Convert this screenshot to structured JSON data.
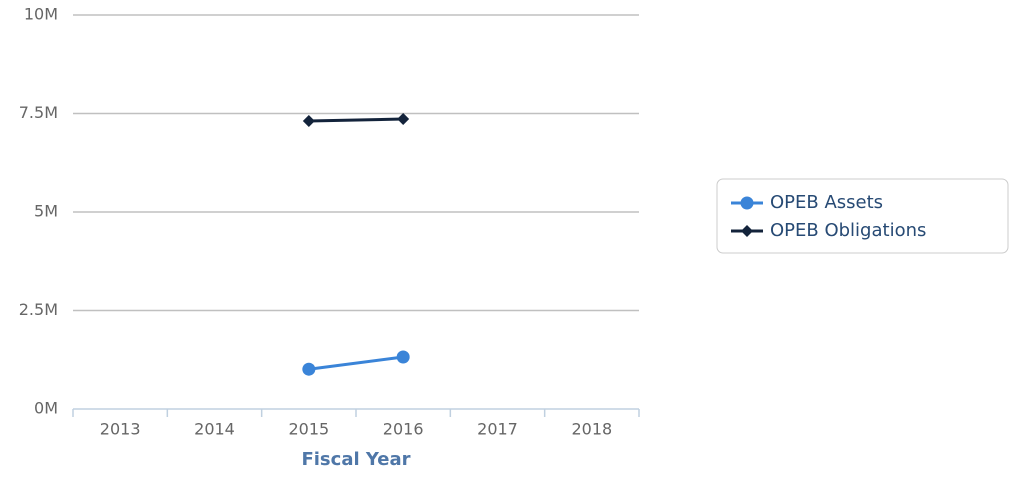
{
  "chart_data": {
    "type": "line",
    "x_label": "Fiscal Year",
    "categories": [
      "2013",
      "2014",
      "2015",
      "2016",
      "2017",
      "2018"
    ],
    "series": [
      {
        "name": "OPEB Assets",
        "color": "#3a84d8",
        "marker": "circle",
        "values": [
          null,
          null,
          1010000,
          1320000,
          null,
          null
        ]
      },
      {
        "name": "OPEB Obligations",
        "color": "#13233b",
        "marker": "diamond",
        "values": [
          null,
          null,
          7310000,
          7360000,
          null,
          null
        ]
      }
    ],
    "ylim": [
      0,
      10000000
    ],
    "yticks": [
      {
        "value": 0,
        "label": "0M"
      },
      {
        "value": 2500000,
        "label": "2.5M"
      },
      {
        "value": 5000000,
        "label": "5M"
      },
      {
        "value": 7500000,
        "label": "7.5M"
      },
      {
        "value": 10000000,
        "label": "10M"
      }
    ],
    "grid": true,
    "legend": "right"
  }
}
